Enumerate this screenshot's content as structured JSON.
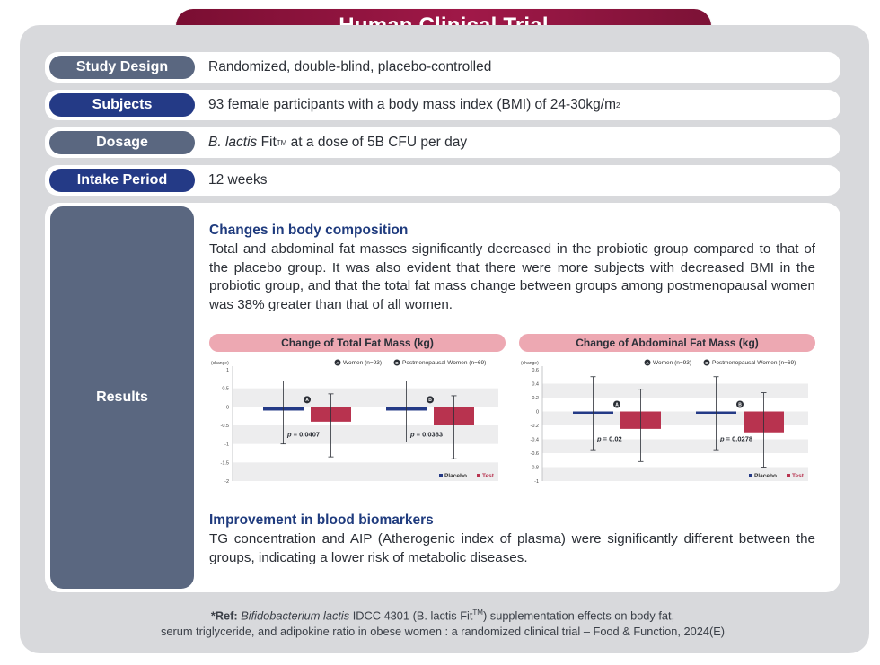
{
  "title": "Human Clinical Trial",
  "rows": [
    {
      "label": "Study Design",
      "text": "Randomized, double-blind, placebo-controlled"
    },
    {
      "label": "Subjects",
      "text": "93 female participants with a body mass index (BMI) of 24-30kg/m",
      "sup": "2"
    },
    {
      "label": "Dosage",
      "italic": "B. lactis",
      "text_a": " Fit",
      "sup": "TM",
      "text_b": " at a dose of 5B CFU per day"
    },
    {
      "label": "Intake Period",
      "text": "12 weeks"
    }
  ],
  "results": {
    "label": "Results",
    "heading1": "Changes in body composition",
    "para1": "Total and abdominal fat masses significantly decreased in the probiotic group compared to that of the placebo group. It was also evident that there were more subjects with decreased BMI in the probiotic group, and that the total fat mass change between groups among postmenopausal women was 38% greater than that of all women.",
    "heading2": "Improvement in blood biomarkers",
    "para2": "TG concentration and AIP (Atherogenic index of plasma) were significantly different between the groups, indicating a lower risk of metabolic diseases."
  },
  "colors": {
    "placebo": "#243a86",
    "test": "#b8334f",
    "gridband": "#ededee"
  },
  "chart_data": [
    {
      "type": "bar",
      "title": "Change of Total Fat Mass (kg)",
      "ylabel": "(change)",
      "ylim": [
        -2,
        1
      ],
      "yticks": [
        "1",
        "0.5",
        "0",
        "-0.5",
        "-1",
        "-1.5",
        "-2"
      ],
      "ytick_values": [
        1,
        0.5,
        0,
        -0.5,
        -1,
        -1.5,
        -2
      ],
      "legend_groups": [
        {
          "mark": "A",
          "text": "Women (n=93)"
        },
        {
          "mark": "B",
          "text": "Postmenopausal Women (n=69)"
        }
      ],
      "groups": [
        {
          "mark": "A",
          "placebo": -0.1,
          "test": -0.4,
          "placebo_err": [
            -1.0,
            0.7
          ],
          "test_err": [
            -1.35,
            0.35
          ],
          "p": "= 0.0407"
        },
        {
          "mark": "B",
          "placebo": -0.1,
          "test": -0.5,
          "placebo_err": [
            -0.95,
            0.7
          ],
          "test_err": [
            -1.4,
            0.3
          ],
          "p": "= 0.0383"
        }
      ],
      "series_legend": [
        "Placebo",
        "Test"
      ]
    },
    {
      "type": "bar",
      "title": "Change of Abdominal Fat Mass (kg)",
      "ylabel": "(change)",
      "ylim": [
        -1,
        0.6
      ],
      "yticks": [
        "0.6",
        "0.4",
        "0.2",
        "0",
        "-0.2",
        "-0.4",
        "-0.6",
        "-0.8",
        "-1"
      ],
      "ytick_values": [
        0.6,
        0.4,
        0.2,
        0,
        -0.2,
        -0.4,
        -0.6,
        -0.8,
        -1
      ],
      "legend_groups": [
        {
          "mark": "A",
          "text": "Women (n=93)"
        },
        {
          "mark": "B",
          "text": "Postmenopausal Women (n=69)"
        }
      ],
      "groups": [
        {
          "mark": "A",
          "placebo": -0.02,
          "test": -0.25,
          "placebo_err": [
            -0.55,
            0.5
          ],
          "test_err": [
            -0.72,
            0.32
          ],
          "p": "= 0.02"
        },
        {
          "mark": "B",
          "placebo": -0.01,
          "test": -0.3,
          "placebo_err": [
            -0.55,
            0.5
          ],
          "test_err": [
            -0.8,
            0.27
          ],
          "p": "= 0.0278"
        }
      ],
      "series_legend": [
        "Placebo",
        "Test"
      ]
    }
  ],
  "reference": {
    "prefix": "*Ref: ",
    "italic": "Bifidobacterium lactis",
    "text_a": " IDCC 4301 (B. lactis Fit",
    "sup": "TM",
    "text_b": ") supplementation effects on body fat,",
    "line2": "serum triglyceride, and adipokine ratio in obese women : a randomized clinical trial – Food & Function, 2024(E)"
  }
}
